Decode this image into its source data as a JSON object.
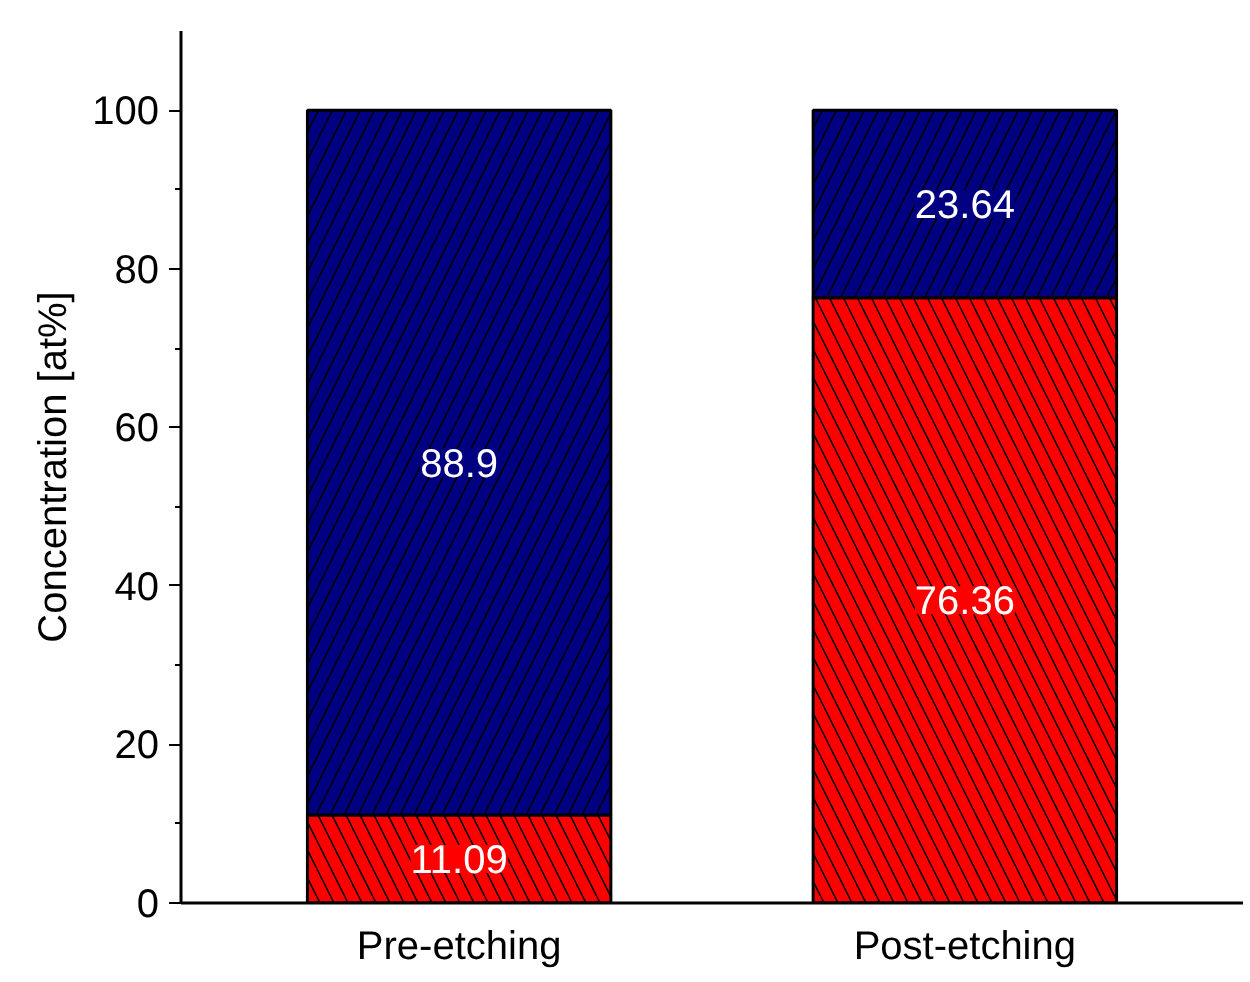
{
  "chart_data": {
    "type": "bar",
    "stacked": true,
    "ylabel": "Concentration [at%]",
    "categories": [
      "Pre-etching",
      "Post-etching"
    ],
    "series": [
      {
        "color": "#ff0000",
        "values": [
          11.09,
          76.36
        ]
      },
      {
        "color": "#000080",
        "values": [
          88.9,
          23.64
        ]
      }
    ],
    "ylim": [
      0,
      110
    ],
    "yticks": [
      0,
      20,
      40,
      60,
      80,
      100
    ],
    "grid": false,
    "data_labels": true
  }
}
